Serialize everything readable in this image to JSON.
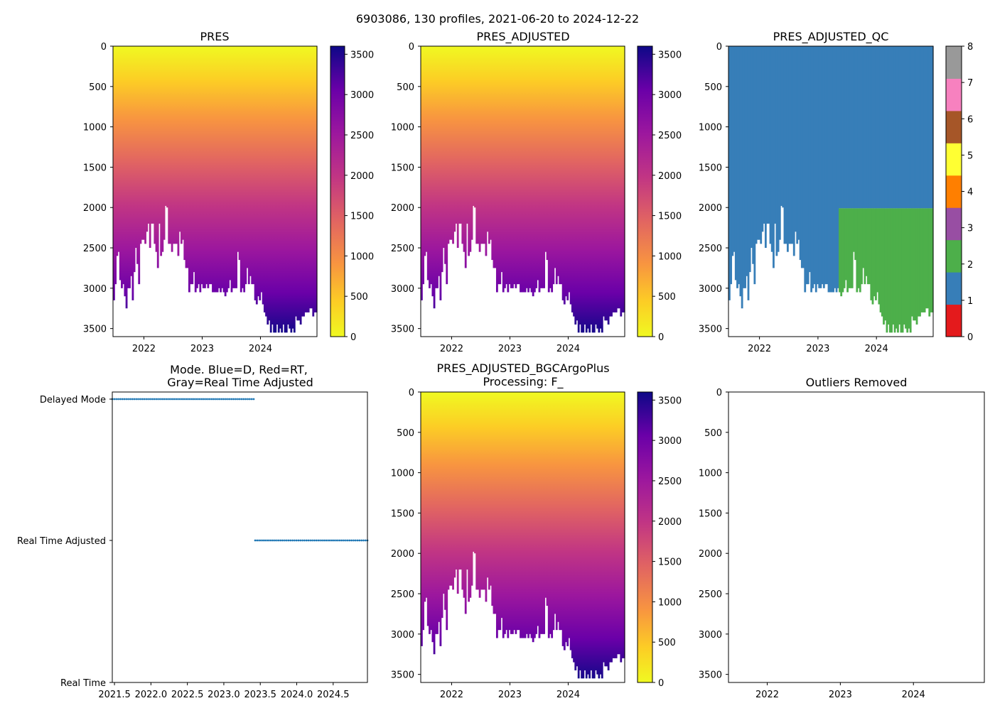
{
  "suptitle": "6903086, 130 profiles, 2021-06-20 to 2024-12-22",
  "chart_data": [
    {
      "type": "heatmap",
      "title": "PRES",
      "xlim": [
        2021.47,
        2024.97
      ],
      "ylim": [
        3600,
        0
      ],
      "xticks": [
        2022,
        2023,
        2024
      ],
      "yticks": [
        0,
        500,
        1000,
        1500,
        2000,
        2500,
        3000,
        3500
      ],
      "colormap": "plasma_r",
      "colorbar": {
        "range": [
          0,
          3600
        ],
        "ticks": [
          0,
          500,
          1000,
          1500,
          2000,
          2500,
          3000,
          3500
        ]
      }
    },
    {
      "type": "heatmap",
      "title": "PRES_ADJUSTED",
      "xlim": [
        2021.47,
        2024.97
      ],
      "ylim": [
        3600,
        0
      ],
      "xticks": [
        2022,
        2023,
        2024
      ],
      "yticks": [
        0,
        500,
        1000,
        1500,
        2000,
        2500,
        3000,
        3500
      ],
      "colormap": "plasma_r",
      "colorbar": {
        "range": [
          0,
          3600
        ],
        "ticks": [
          0,
          500,
          1000,
          1500,
          2000,
          2500,
          3000,
          3500
        ]
      }
    },
    {
      "type": "heatmap",
      "title": "PRES_ADJUSTED_QC",
      "xlim": [
        2021.47,
        2024.97
      ],
      "ylim": [
        3600,
        0
      ],
      "xticks": [
        2022,
        2023,
        2024
      ],
      "yticks": [
        0,
        500,
        1000,
        1500,
        2000,
        2500,
        3000,
        3500
      ],
      "qc_regions": [
        {
          "flag": 1,
          "note": "all profiles before ~2023.43, and above ~2010 dbar after"
        },
        {
          "flag": 2,
          "note": "below ~2010 dbar from ~2023.43 onward"
        }
      ],
      "colorbar": {
        "range": [
          0,
          8
        ],
        "ticks": [
          0,
          1,
          2,
          3,
          4,
          5,
          6,
          7,
          8
        ],
        "colors": [
          "#e41a1c",
          "#377eb8",
          "#4daf4a",
          "#984ea3",
          "#ff7f00",
          "#ffff33",
          "#a65628",
          "#f781bf",
          "#999999"
        ]
      }
    },
    {
      "type": "scatter",
      "title": "Mode. Blue=D, Red=RT,\nGray=Real Time Adjusted",
      "xlim": [
        2021.47,
        2024.97
      ],
      "xticks": [
        2021.5,
        2022.0,
        2022.5,
        2023.0,
        2023.5,
        2024.0,
        2024.5
      ],
      "yticks": [
        "Real Time",
        "Real Time Adjusted",
        "Delayed Mode"
      ],
      "series": [
        {
          "name": "Delayed Mode",
          "x_range": [
            2021.47,
            2023.41
          ],
          "y": "Delayed Mode",
          "count": 72
        },
        {
          "name": "Real Time Adjusted",
          "x_range": [
            2023.43,
            2024.97
          ],
          "y": "Real Time Adjusted",
          "count": 58
        }
      ]
    },
    {
      "type": "heatmap",
      "title": "PRES_ADJUSTED_BGCArgoPlus\nProcessing: F_",
      "xlim": [
        2021.47,
        2024.97
      ],
      "ylim": [
        3600,
        0
      ],
      "xticks": [
        2022,
        2023,
        2024
      ],
      "yticks": [
        0,
        500,
        1000,
        1500,
        2000,
        2500,
        3000,
        3500
      ],
      "colormap": "plasma_r",
      "colorbar": {
        "range": [
          0,
          3600
        ],
        "ticks": [
          0,
          500,
          1000,
          1500,
          2000,
          2500,
          3000,
          3500
        ]
      }
    },
    {
      "type": "scatter",
      "title": "Outliers Removed",
      "xlim": [
        2021.47,
        2024.97
      ],
      "ylim": [
        3600,
        0
      ],
      "xticks": [
        2022,
        2023,
        2024
      ],
      "yticks": [
        0,
        500,
        1000,
        1500,
        2000,
        2500,
        3000,
        3500
      ],
      "series": []
    }
  ],
  "profiles": {
    "count": 130,
    "x_start": 2021.47,
    "x_end": 2024.97,
    "max_depth_dbar": [
      3150,
      2950,
      2600,
      2550,
      2900,
      3000,
      2950,
      3100,
      3250,
      3000,
      3000,
      2850,
      3150,
      2800,
      2500,
      2700,
      2950,
      2450,
      2400,
      2400,
      2450,
      2300,
      2200,
      2500,
      2200,
      2200,
      2450,
      2550,
      2750,
      2200,
      2600,
      2550,
      2400,
      1980,
      2000,
      2450,
      2450,
      2550,
      2450,
      2450,
      2450,
      2600,
      2300,
      2450,
      2400,
      2650,
      2750,
      2750,
      3050,
      2950,
      2950,
      2800,
      3050,
      3000,
      2950,
      3050,
      2950,
      3000,
      3000,
      2950,
      3000,
      2950,
      2950,
      3050,
      3050,
      3050,
      3050,
      3000,
      3050,
      3000,
      3050,
      3100,
      3050,
      3000,
      2900,
      3050,
      3000,
      3000,
      3000,
      2550,
      2650,
      3050,
      3000,
      3050,
      2950,
      2750,
      2950,
      2850,
      2950,
      2950,
      3150,
      3200,
      3100,
      3150,
      3050,
      3200,
      3300,
      3350,
      3450,
      3400,
      3550,
      3450,
      3550,
      3550,
      3450,
      3550,
      3500,
      3550,
      3450,
      3550,
      3550,
      3450,
      3500,
      3550,
      3500,
      3550,
      3350,
      3400,
      3400,
      3450,
      3350,
      3350,
      3300,
      3300,
      3300,
      3250,
      3250,
      3350,
      3300,
      3300
    ]
  }
}
